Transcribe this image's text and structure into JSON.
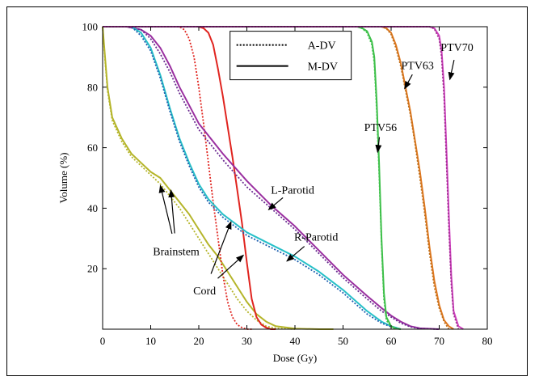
{
  "chart_data": {
    "type": "line",
    "title": "",
    "xlabel": "Dose (Gy)",
    "ylabel": "Volume (%)",
    "xlim": [
      0,
      80
    ],
    "ylim": [
      0,
      100
    ],
    "xticks": [
      0,
      10,
      20,
      30,
      40,
      50,
      60,
      70,
      80
    ],
    "yticks": [
      20,
      40,
      60,
      80,
      100
    ],
    "grid": false,
    "legend": {
      "placement": "top-center",
      "entries": [
        {
          "label": "A-DV",
          "style": "dotted"
        },
        {
          "label": "M-DV",
          "style": "solid"
        }
      ]
    },
    "series": [
      {
        "group": "Brainstem",
        "method": "M-DV",
        "style": "solid",
        "color": "#b5b52a",
        "x": [
          0,
          0.5,
          1,
          2,
          4,
          6,
          8,
          10,
          12,
          14,
          16,
          18,
          20,
          22,
          24,
          26,
          28,
          30,
          32,
          34,
          36,
          40,
          45,
          48
        ],
        "y": [
          100,
          90,
          80,
          70,
          63,
          58,
          55,
          52,
          50,
          46,
          42,
          38,
          33,
          28,
          24,
          19,
          14,
          9,
          5,
          2.5,
          1,
          0.2,
          0,
          0
        ]
      },
      {
        "group": "Brainstem",
        "method": "A-DV",
        "style": "dotted",
        "color": "#b5b52a",
        "x": [
          0,
          0.5,
          1,
          2,
          4,
          6,
          8,
          10,
          12,
          14,
          16,
          18,
          20,
          22,
          24,
          26,
          28,
          30,
          32,
          34,
          36,
          40
        ],
        "y": [
          100,
          89,
          79,
          69,
          62,
          57,
          54,
          51,
          48,
          44,
          40,
          35,
          30,
          25,
          20,
          15,
          10,
          6,
          3,
          1,
          0.3,
          0
        ]
      },
      {
        "group": "Cord",
        "method": "M-DV",
        "style": "solid",
        "color": "#e0241f",
        "x": [
          0,
          20,
          21,
          22,
          23,
          24,
          25,
          26,
          27,
          28,
          29,
          30,
          31,
          32,
          33,
          34,
          35,
          36
        ],
        "y": [
          100,
          100,
          99.5,
          98,
          94,
          86,
          77,
          67,
          57,
          46,
          35,
          22,
          10,
          4,
          1.5,
          0.5,
          0,
          0
        ]
      },
      {
        "group": "Cord",
        "method": "A-DV",
        "style": "dotted",
        "color": "#e0241f",
        "x": [
          0,
          16,
          17,
          18,
          19,
          20,
          21,
          22,
          23,
          24,
          25,
          26,
          27,
          28,
          29,
          30,
          31
        ],
        "y": [
          100,
          100,
          99,
          96,
          90,
          80,
          68,
          55,
          42,
          30,
          18,
          9,
          4,
          1.5,
          0.5,
          0,
          0
        ]
      },
      {
        "group": "L-Parotid",
        "method": "M-DV",
        "style": "solid",
        "color": "#9a2fa0",
        "x": [
          0,
          5,
          8,
          10,
          12,
          14,
          16,
          18,
          20,
          25,
          30,
          35,
          40,
          45,
          50,
          55,
          58,
          60,
          62,
          64,
          66,
          70
        ],
        "y": [
          100,
          100,
          99,
          97,
          93,
          87,
          80,
          74,
          68,
          58,
          49,
          41,
          34,
          26,
          18,
          11,
          7,
          4.5,
          2.5,
          1,
          0.3,
          0
        ]
      },
      {
        "group": "L-Parotid",
        "method": "A-DV",
        "style": "dotted",
        "color": "#6a2a90",
        "x": [
          0,
          5,
          8,
          10,
          12,
          14,
          16,
          18,
          20,
          25,
          30,
          35,
          40,
          45,
          50,
          55,
          58,
          60,
          62,
          64,
          66,
          70
        ],
        "y": [
          100,
          100,
          99,
          96,
          91,
          85,
          78,
          72,
          66,
          56,
          47,
          40,
          33,
          25,
          17,
          10,
          6,
          4,
          2,
          0.8,
          0.2,
          0
        ]
      },
      {
        "group": "R-Parotid",
        "method": "M-DV",
        "style": "solid",
        "color": "#27c0c8",
        "x": [
          0,
          6,
          8,
          10,
          12,
          14,
          16,
          18,
          20,
          22,
          25,
          30,
          35,
          40,
          45,
          50,
          55,
          58,
          60,
          62
        ],
        "y": [
          100,
          100,
          98,
          93,
          84,
          73,
          63,
          55,
          48,
          43,
          38,
          32,
          28,
          24,
          19,
          13,
          6,
          2.5,
          1,
          0
        ]
      },
      {
        "group": "R-Parotid",
        "method": "A-DV",
        "style": "dotted",
        "color": "#1f60b0",
        "x": [
          0,
          6,
          8,
          10,
          12,
          14,
          16,
          18,
          20,
          22,
          25,
          30,
          35,
          40,
          45,
          50,
          55,
          58,
          60,
          62
        ],
        "y": [
          100,
          100,
          97,
          92,
          83,
          72,
          62,
          54,
          47,
          42,
          37,
          31,
          27,
          23,
          18,
          12,
          5,
          2,
          0.8,
          0
        ]
      },
      {
        "group": "PTV56",
        "method": "M-DV",
        "style": "solid",
        "color": "#3ec04a",
        "x": [
          0,
          53,
          54,
          55,
          56,
          56.5,
          57,
          57.5,
          58,
          58.5,
          59,
          60,
          61,
          62
        ],
        "y": [
          100,
          100,
          99.5,
          98.5,
          95,
          90,
          75,
          55,
          30,
          12,
          4,
          1,
          0.2,
          0
        ]
      },
      {
        "group": "PTV56",
        "method": "A-DV",
        "style": "dotted",
        "color": "#3ec04a",
        "x": [
          0,
          53,
          54,
          55,
          56,
          56.5,
          57,
          57.5,
          58,
          58.5,
          59,
          60,
          61
        ],
        "y": [
          100,
          100,
          99.4,
          98,
          94,
          88,
          72,
          52,
          28,
          10,
          3,
          0.8,
          0
        ]
      },
      {
        "group": "PTV63",
        "method": "M-DV",
        "style": "solid",
        "color": "#e07820",
        "x": [
          0,
          58,
          59,
          60,
          61,
          62,
          62.5,
          63,
          64,
          65,
          66,
          67,
          68,
          69,
          70,
          71,
          72,
          73
        ],
        "y": [
          100,
          100,
          99.5,
          98,
          94,
          88,
          84,
          80,
          72,
          62,
          52,
          40,
          27,
          16,
          8,
          3,
          1,
          0
        ]
      },
      {
        "group": "PTV63",
        "method": "A-DV",
        "style": "dotted",
        "color": "#c0701a",
        "x": [
          0,
          58,
          59,
          60,
          61,
          62,
          62.5,
          63,
          64,
          65,
          66,
          67,
          68,
          69,
          70,
          71,
          72
        ],
        "y": [
          100,
          100,
          99.4,
          97.5,
          93,
          87,
          83,
          79,
          71,
          61,
          50,
          38,
          25,
          14,
          7,
          2.5,
          0
        ]
      },
      {
        "group": "PTV70",
        "method": "M-DV",
        "style": "solid",
        "color": "#d040c0",
        "x": [
          0,
          68,
          69,
          70,
          70.5,
          71,
          71.5,
          72,
          72.5,
          73,
          74,
          75
        ],
        "y": [
          100,
          100,
          99.5,
          97,
          92,
          80,
          60,
          38,
          18,
          6,
          1,
          0
        ]
      },
      {
        "group": "PTV70",
        "method": "A-DV",
        "style": "dotted",
        "color": "#a03090",
        "x": [
          0,
          68,
          69,
          70,
          70.5,
          71,
          71.5,
          72,
          72.5,
          73,
          74
        ],
        "y": [
          100,
          100,
          99.3,
          96,
          90,
          77,
          56,
          34,
          15,
          5,
          0
        ]
      }
    ],
    "annotations": [
      {
        "text": "PTV70",
        "tx": 73.7,
        "ty": 92,
        "arrows": [
          [
            72.2,
            82.5
          ]
        ]
      },
      {
        "text": "PTV63",
        "tx": 65.5,
        "ty": 86,
        "arrows": [
          [
            62.8,
            79.5
          ]
        ]
      },
      {
        "text": "PTV56",
        "tx": 57.8,
        "ty": 65.5,
        "arrows": [
          [
            57.2,
            58.5
          ]
        ]
      },
      {
        "text": "L-Parotid",
        "tx": 39.5,
        "ty": 44.8,
        "arrows": [
          [
            34.5,
            39.5
          ]
        ]
      },
      {
        "text": "R-Parotid",
        "tx": 44.4,
        "ty": 29.3,
        "arrows": [
          [
            38.3,
            22.5
          ]
        ]
      },
      {
        "text": "Brainstem",
        "tx": 15.3,
        "ty": 24.5,
        "arrows": [
          [
            12.0,
            47.5
          ],
          [
            14.2,
            46.0
          ]
        ]
      },
      {
        "text": "Cord",
        "tx": 21.2,
        "ty": 11.5,
        "arrows": [
          [
            26.7,
            35.5
          ],
          [
            29.3,
            24.5
          ]
        ]
      }
    ]
  }
}
